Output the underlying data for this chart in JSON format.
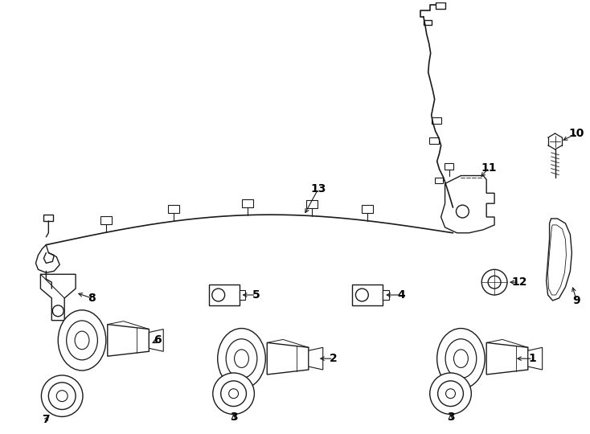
{
  "bg_color": "#ffffff",
  "line_color": "#1a1a1a",
  "lw": 1.0,
  "figsize": [
    7.34,
    5.4
  ],
  "dpi": 100
}
